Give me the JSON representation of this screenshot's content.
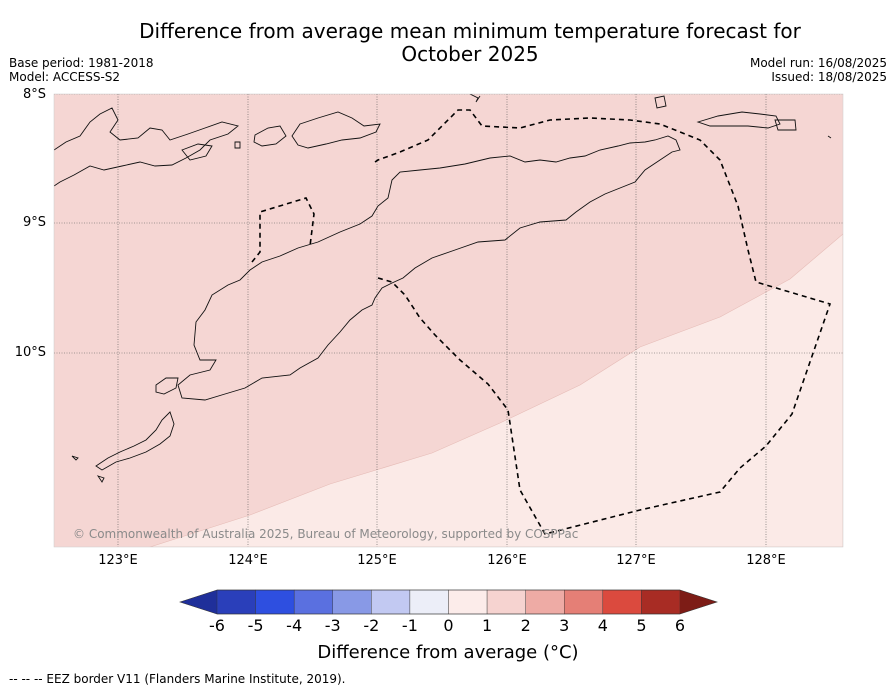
{
  "title_line1": "Difference from average mean minimum temperature forecast for",
  "title_line2": "October 2025",
  "base_period": "Base period: 1981-2018",
  "model": "Model: ACCESS-S2",
  "model_run": "Model run: 16/08/2025",
  "issued": "Issued: 18/08/2025",
  "latitudes": [
    "8°S",
    "9°S",
    "10°S"
  ],
  "longitudes": [
    "123°E",
    "124°E",
    "125°E",
    "126°E",
    "127°E",
    "128°E"
  ],
  "copyright": "© Commonwealth of Australia 2025, Bureau of Meteorology, supported by COSPPac",
  "colorbar": {
    "ticks": [
      "-6",
      "-5",
      "-4",
      "-3",
      "-2",
      "-1",
      "0",
      "1",
      "2",
      "3",
      "4",
      "5",
      "6"
    ],
    "label": "Difference from average ($^\\circ$C)",
    "label_display": "Difference from average (°C)",
    "colors": [
      "#1f2f9a",
      "#2a3fba",
      "#2e4fe0",
      "#5a70e0",
      "#8899e6",
      "#c2c9f2",
      "#eceef8",
      "#fcecea",
      "#f6d3d0",
      "#eeaba5",
      "#e57f76",
      "#db4a3e",
      "#a82c24",
      "#7d1c16"
    ]
  },
  "legend": {
    "eez": "--  --  -- EEZ border V11 (Flanders Marine Institute, 2019)."
  },
  "map": {
    "extent": {
      "lon": [
        122.5,
        128.6
      ],
      "lat": [
        -11.5,
        -8.0
      ]
    },
    "regions": [
      {
        "name": "1 to 2 °C",
        "color": "#f5d6d3"
      },
      {
        "name": "0 to 1 °C",
        "color": "#fbeae7"
      }
    ]
  }
}
